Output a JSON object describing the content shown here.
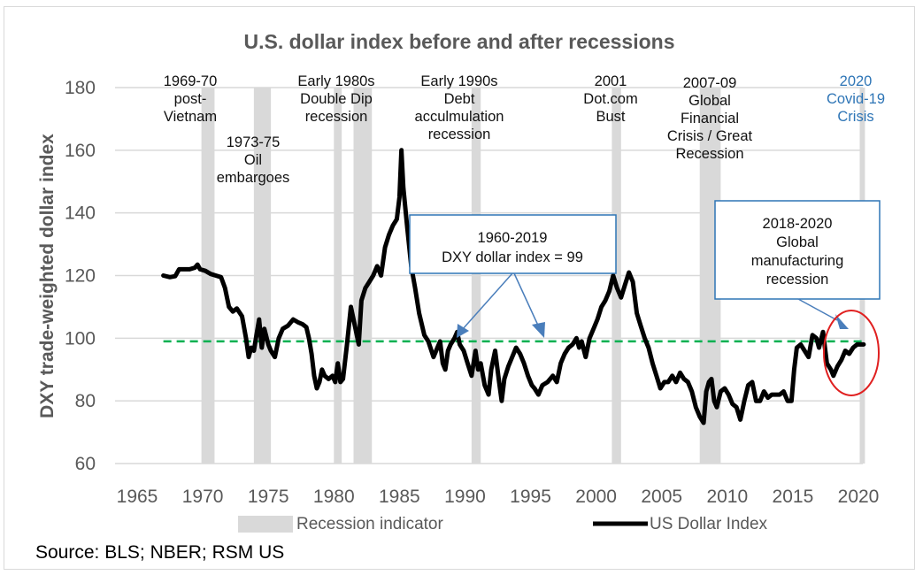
{
  "chart_data": {
    "type": "line",
    "title": "U.S. dollar index before and after recessions",
    "xlabel": "",
    "ylabel": "DXY trade-weighted dollar index",
    "xlim": [
      1965,
      2020
    ],
    "ylim": [
      60,
      180
    ],
    "x_ticks": [
      "1965",
      "1970",
      "1975",
      "1980",
      "1985",
      "1990",
      "1995",
      "2000",
      "2005",
      "2010",
      "2015",
      "2020"
    ],
    "y_ticks": [
      "60",
      "80",
      "100",
      "120",
      "140",
      "160",
      "180"
    ],
    "grid": true,
    "legend_position": "bottom",
    "legend": [
      {
        "name": "Recession indicator",
        "kind": "bar",
        "color": "#d9d9d9"
      },
      {
        "name": "US Dollar Index",
        "kind": "line",
        "color": "#000000"
      }
    ],
    "reference_line": {
      "name": "1960-2019 average",
      "value": 99,
      "color": "#00b050",
      "style": "dashed"
    },
    "recessions": [
      {
        "start": 1969.9,
        "end": 1970.9
      },
      {
        "start": 1973.9,
        "end": 1975.2
      },
      {
        "start": 1980.0,
        "end": 1980.6
      },
      {
        "start": 1981.5,
        "end": 1982.9
      },
      {
        "start": 1990.5,
        "end": 1991.2
      },
      {
        "start": 2001.2,
        "end": 2001.9
      },
      {
        "start": 2007.9,
        "end": 2009.5
      },
      {
        "start": 2020.1,
        "end": 2020.5
      }
    ],
    "series": [
      {
        "name": "US Dollar Index",
        "x": [
          1967.0,
          1967.5,
          1967.9,
          1968.2,
          1968.6,
          1969.0,
          1969.4,
          1969.6,
          1969.8,
          1970.2,
          1970.6,
          1971.0,
          1971.4,
          1971.7,
          1972.0,
          1972.3,
          1972.6,
          1973.0,
          1973.3,
          1973.5,
          1973.7,
          1973.9,
          1974.1,
          1974.3,
          1974.5,
          1974.7,
          1975.0,
          1975.2,
          1975.5,
          1975.8,
          1976.1,
          1976.5,
          1976.9,
          1977.3,
          1977.6,
          1977.9,
          1978.1,
          1978.3,
          1978.5,
          1978.7,
          1978.9,
          1979.1,
          1979.3,
          1979.6,
          1979.9,
          1980.1,
          1980.3,
          1980.5,
          1980.7,
          1981.0,
          1981.3,
          1981.6,
          1981.9,
          1982.1,
          1982.4,
          1982.7,
          1983.0,
          1983.3,
          1983.6,
          1983.9,
          1984.2,
          1984.5,
          1984.8,
          1985.0,
          1985.15,
          1985.3,
          1985.6,
          1985.9,
          1986.2,
          1986.5,
          1986.9,
          1987.2,
          1987.6,
          1987.9,
          1988.1,
          1988.3,
          1988.5,
          1988.7,
          1988.9,
          1989.2,
          1989.4,
          1989.6,
          1989.9,
          1990.2,
          1990.5,
          1990.8,
          1991.0,
          1991.2,
          1991.5,
          1991.8,
          1992.0,
          1992.3,
          1992.6,
          1992.8,
          1993.0,
          1993.3,
          1993.6,
          1993.9,
          1994.2,
          1994.5,
          1994.8,
          1995.1,
          1995.3,
          1995.6,
          1995.9,
          1996.3,
          1996.7,
          1997.0,
          1997.3,
          1997.6,
          1997.9,
          1998.2,
          1998.5,
          1998.7,
          1998.9,
          1999.2,
          1999.5,
          1999.8,
          2000.1,
          2000.4,
          2000.7,
          2001.0,
          2001.3,
          2001.6,
          2001.9,
          2002.2,
          2002.5,
          2002.8,
          2003.1,
          2003.4,
          2003.7,
          2004.0,
          2004.3,
          2004.6,
          2004.9,
          2005.2,
          2005.5,
          2005.8,
          2006.1,
          2006.4,
          2006.7,
          2007.0,
          2007.3,
          2007.6,
          2007.9,
          2008.2,
          2008.4,
          2008.6,
          2008.8,
          2009.0,
          2009.2,
          2009.5,
          2009.8,
          2010.1,
          2010.4,
          2010.7,
          2011.0,
          2011.3,
          2011.6,
          2011.9,
          2012.2,
          2012.5,
          2012.8,
          2013.1,
          2013.4,
          2013.7,
          2014.0,
          2014.3,
          2014.6,
          2014.9,
          2015.1,
          2015.3,
          2015.6,
          2015.9,
          2016.2,
          2016.5,
          2016.8,
          2017.0,
          2017.3,
          2017.6,
          2017.9,
          2018.1,
          2018.4,
          2018.7,
          2019.0,
          2019.3,
          2019.6,
          2019.9,
          2020.2,
          2020.4
        ],
        "y": [
          120,
          119.5,
          119.8,
          122,
          122,
          122,
          122.5,
          123.5,
          122,
          121.5,
          120.5,
          120,
          119.5,
          116,
          110,
          108.5,
          109.5,
          107,
          100,
          94,
          97,
          96,
          101,
          106,
          97,
          103,
          98,
          96,
          94,
          100,
          103,
          104,
          106,
          105,
          104.5,
          103.5,
          100,
          95,
          88,
          84,
          86,
          90,
          88,
          87,
          88,
          86,
          92,
          86,
          87,
          98,
          110,
          104,
          98,
          112,
          116,
          118,
          120,
          123,
          120,
          129,
          133,
          136,
          138,
          145,
          160,
          148,
          135,
          123,
          116,
          108,
          101,
          99,
          94,
          97,
          99,
          92,
          90,
          96,
          98,
          100,
          102,
          98,
          96,
          92,
          88,
          96,
          90,
          92,
          85,
          82,
          90,
          96,
          86,
          80,
          87,
          91,
          94,
          97,
          95,
          92,
          88,
          85,
          84,
          82,
          85,
          86,
          88,
          86,
          92,
          95,
          97,
          98,
          100,
          97,
          99,
          94,
          100,
          103,
          106,
          110,
          112,
          115,
          120,
          116,
          113,
          117,
          121,
          118,
          108,
          104,
          100,
          97,
          92,
          88,
          84,
          86,
          86,
          88,
          86,
          89,
          87,
          86,
          83,
          78,
          75,
          73,
          83,
          86,
          87,
          80,
          78,
          83,
          84,
          82,
          79,
          78,
          74,
          80,
          85,
          86,
          80,
          80,
          83,
          81,
          82,
          82,
          82,
          83,
          80,
          80,
          90,
          97,
          98,
          96,
          94,
          101,
          100,
          97,
          102,
          92,
          90,
          88,
          91,
          93,
          96,
          95,
          97,
          98,
          98,
          98
        ]
      },
      {
        "name": "1960-2019 average",
        "x": [
          1967,
          2020.5
        ],
        "y": [
          99,
          99
        ]
      }
    ],
    "annotations": [
      {
        "id": "ann-1969",
        "lines": [
          "1969-70",
          "post-",
          "Vietnam"
        ],
        "color": "#111111"
      },
      {
        "id": "ann-1973",
        "lines": [
          "1973-75",
          "Oil",
          "embargoes"
        ],
        "color": "#111111"
      },
      {
        "id": "ann-1980",
        "lines": [
          "Early 1980s",
          "Double Dip",
          "recession"
        ],
        "color": "#111111"
      },
      {
        "id": "ann-1990",
        "lines": [
          "Early 1990s",
          "Debt",
          "acculmulation",
          "recession"
        ],
        "color": "#111111"
      },
      {
        "id": "ann-2001",
        "lines": [
          "2001",
          "Dot.com",
          "Bust"
        ],
        "color": "#111111"
      },
      {
        "id": "ann-2007",
        "lines": [
          "2007-09",
          "Global",
          "Financial",
          "Crisis / Great",
          "Recession"
        ],
        "color": "#111111"
      },
      {
        "id": "ann-2020",
        "lines": [
          "2020",
          "Covid-19",
          "Crisis"
        ],
        "color": "#2e75b6"
      }
    ],
    "callouts": [
      {
        "id": "callout-average",
        "lines": [
          "1960-2019",
          "DXY dollar index = 99"
        ]
      },
      {
        "id": "callout-manufacturing",
        "lines": [
          "2018-2020",
          "Global",
          "manufacturing",
          "recession"
        ]
      }
    ]
  },
  "source": "Source: BLS; NBER; RSM US"
}
